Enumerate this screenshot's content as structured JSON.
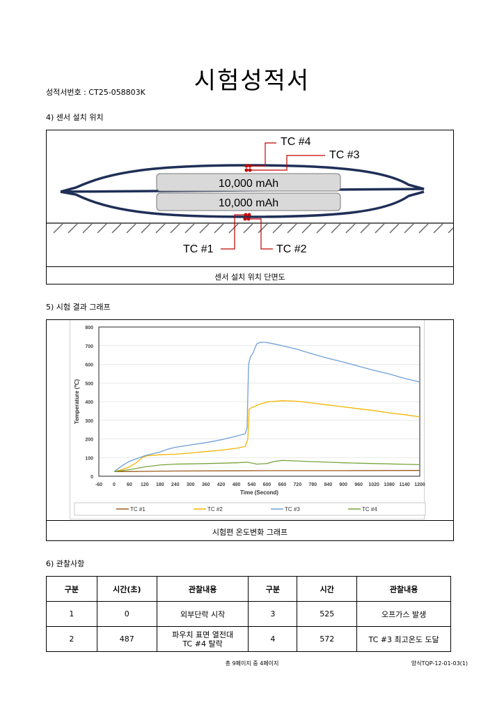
{
  "header": {
    "title": "시험성적서",
    "doc_no": "성적서번호 : CT25-058803K"
  },
  "section4": {
    "heading": "4) 센서 설치 위치",
    "cells": [
      "10,000 mAh",
      "10,000 mAh"
    ],
    "labels": {
      "tc1": "TC #1",
      "tc2": "TC #2",
      "tc3": "TC #3",
      "tc4": "TC #4"
    },
    "caption": "센서 설치 위치 단면도",
    "colors": {
      "pouch": "#1f2f57",
      "cell_fill": "#d9d9d9",
      "sensor": "#c00000"
    }
  },
  "section5": {
    "heading": "5) 시험 결과 그래프",
    "caption": "시험편 온도변화 그래프"
  },
  "chart_data": {
    "type": "line",
    "xlabel": "Time (Second)",
    "ylabel": "Temperature (℃)",
    "xlim": [
      -60,
      1200
    ],
    "ylim": [
      0,
      800
    ],
    "xticks": [
      -60,
      0,
      60,
      120,
      180,
      240,
      300,
      360,
      420,
      480,
      540,
      600,
      660,
      720,
      780,
      840,
      900,
      960,
      1020,
      1080,
      1140,
      1200
    ],
    "yticks": [
      0,
      100,
      200,
      300,
      400,
      500,
      600,
      700,
      800
    ],
    "legend_position": "bottom",
    "series": [
      {
        "name": "TC #1",
        "color": "#9c5a1e",
        "points": [
          [
            0,
            25
          ],
          [
            60,
            25
          ],
          [
            120,
            26
          ],
          [
            240,
            28
          ],
          [
            480,
            29
          ],
          [
            600,
            30
          ],
          [
            900,
            30
          ],
          [
            1200,
            31
          ]
        ]
      },
      {
        "name": "TC #2",
        "color": "#f5b400",
        "points": [
          [
            0,
            25
          ],
          [
            30,
            35
          ],
          [
            60,
            50
          ],
          [
            90,
            75
          ],
          [
            110,
            100
          ],
          [
            130,
            110
          ],
          [
            180,
            115
          ],
          [
            240,
            118
          ],
          [
            300,
            125
          ],
          [
            360,
            132
          ],
          [
            420,
            140
          ],
          [
            480,
            150
          ],
          [
            515,
            160
          ],
          [
            525,
            200
          ],
          [
            530,
            360
          ],
          [
            540,
            368
          ],
          [
            570,
            385
          ],
          [
            600,
            398
          ],
          [
            660,
            405
          ],
          [
            720,
            402
          ],
          [
            780,
            392
          ],
          [
            840,
            382
          ],
          [
            900,
            372
          ],
          [
            960,
            362
          ],
          [
            1020,
            352
          ],
          [
            1080,
            340
          ],
          [
            1140,
            330
          ],
          [
            1200,
            318
          ]
        ]
      },
      {
        "name": "TC #3",
        "color": "#6e9fd6",
        "points": [
          [
            0,
            25
          ],
          [
            30,
            55
          ],
          [
            60,
            80
          ],
          [
            90,
            95
          ],
          [
            120,
            110
          ],
          [
            150,
            120
          ],
          [
            180,
            130
          ],
          [
            210,
            145
          ],
          [
            240,
            155
          ],
          [
            300,
            168
          ],
          [
            360,
            180
          ],
          [
            420,
            195
          ],
          [
            480,
            215
          ],
          [
            515,
            228
          ],
          [
            522,
            260
          ],
          [
            528,
            600
          ],
          [
            535,
            640
          ],
          [
            545,
            660
          ],
          [
            560,
            710
          ],
          [
            575,
            718
          ],
          [
            600,
            717
          ],
          [
            660,
            700
          ],
          [
            720,
            680
          ],
          [
            780,
            655
          ],
          [
            840,
            632
          ],
          [
            900,
            612
          ],
          [
            960,
            590
          ],
          [
            1020,
            568
          ],
          [
            1080,
            548
          ],
          [
            1140,
            525
          ],
          [
            1200,
            505
          ]
        ]
      },
      {
        "name": "TC #4",
        "color": "#7aa33b",
        "points": [
          [
            0,
            25
          ],
          [
            60,
            35
          ],
          [
            120,
            50
          ],
          [
            180,
            60
          ],
          [
            240,
            65
          ],
          [
            300,
            66
          ],
          [
            360,
            68
          ],
          [
            420,
            70
          ],
          [
            480,
            72
          ],
          [
            525,
            75
          ],
          [
            560,
            65
          ],
          [
            600,
            68
          ],
          [
            630,
            80
          ],
          [
            660,
            85
          ],
          [
            720,
            82
          ],
          [
            780,
            78
          ],
          [
            840,
            75
          ],
          [
            900,
            72
          ],
          [
            960,
            70
          ],
          [
            1020,
            68
          ],
          [
            1080,
            66
          ],
          [
            1140,
            64
          ],
          [
            1200,
            62
          ]
        ]
      }
    ]
  },
  "section6": {
    "heading": "6) 관찰사항",
    "headers": [
      "구분",
      "시간(초)",
      "관찰내용",
      "구분",
      "시간",
      "관찰내용"
    ],
    "rows": [
      [
        "1",
        "0",
        "외부단락 시작",
        "3",
        "525",
        "오프가스 발생"
      ],
      [
        "2",
        "487",
        "파우치 표면 열전대\nTC #4 탈락",
        "4",
        "572",
        "TC #3 최고온도 도달"
      ]
    ]
  },
  "footer": {
    "page": "총 9페이지 중 4페이지",
    "form": "양식TQP-12-01-03(1)"
  }
}
